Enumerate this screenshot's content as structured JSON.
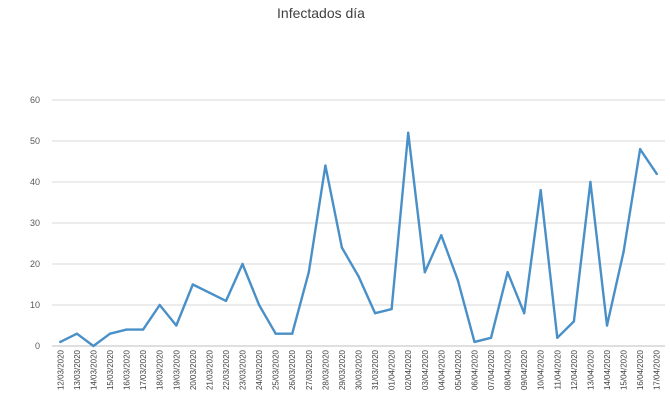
{
  "chart_data": {
    "type": "line",
    "title": "Infectados día",
    "xlabel": "",
    "ylabel": "",
    "ylim": [
      0,
      60
    ],
    "yticks": [
      0,
      10,
      20,
      30,
      40,
      50,
      60
    ],
    "grid": true,
    "legend": "none",
    "categories": [
      "12/03/2020",
      "13/03/2020",
      "14/03/2020",
      "15/03/2020",
      "16/03/2020",
      "17/03/2020",
      "18/03/2020",
      "19/03/2020",
      "20/03/2020",
      "21/03/2020",
      "22/03/2020",
      "23/03/2020",
      "24/03/2020",
      "25/03/2020",
      "26/03/2020",
      "27/03/2020",
      "28/03/2020",
      "29/03/2020",
      "30/03/2020",
      "31/03/2020",
      "01/04/2020",
      "02/04/2020",
      "03/04/2020",
      "04/04/2020",
      "05/04/2020",
      "06/04/2020",
      "07/04/2020",
      "08/04/2020",
      "09/04/2020",
      "10/04/2020",
      "11/04/2020",
      "12/04/2020",
      "13/04/2020",
      "14/04/2020",
      "15/04/2020",
      "16/04/2020",
      "17/04/2020"
    ],
    "series": [
      {
        "color": "#4a90c8",
        "values": [
          1,
          3,
          0,
          3,
          4,
          4,
          10,
          5,
          15,
          13,
          11,
          20,
          10,
          3,
          3,
          18,
          44,
          24,
          17,
          8,
          9,
          52,
          18,
          27,
          16,
          1,
          2,
          18,
          8,
          38,
          2,
          6,
          40,
          5,
          23,
          48,
          42
        ]
      }
    ]
  }
}
